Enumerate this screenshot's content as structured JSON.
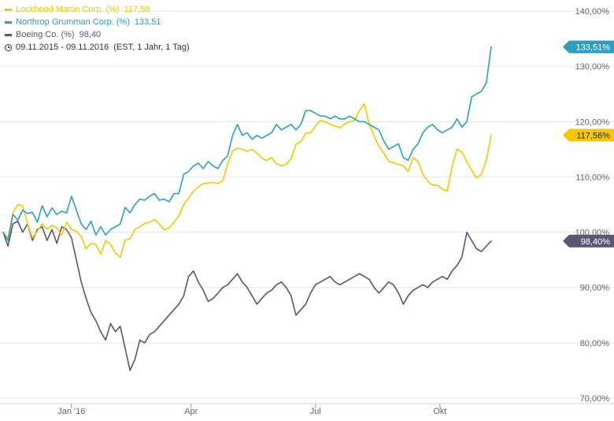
{
  "legend": [
    {
      "name": "Lockheed Martin Corp. (%)",
      "value": "117,56",
      "color": "#f5c800"
    },
    {
      "name": "Northrop Grumman Corp. (%)",
      "value": "133,51",
      "color": "#2a9fbf"
    },
    {
      "name": "Boeing Co. (%)",
      "value": "98,40",
      "color": "#5c5475"
    }
  ],
  "period": {
    "range": "09.11.2015 - 09.11.2016",
    "info": "(EST, 1 Jahr, 1 Tag)"
  },
  "chart_data": {
    "type": "line",
    "title": "",
    "xlabel": "",
    "ylabel": "",
    "ylim": [
      70,
      140
    ],
    "yticks": [
      {
        "value": 70,
        "label": "70,00%"
      },
      {
        "value": 80,
        "label": "80,00%"
      },
      {
        "value": 90,
        "label": "90,00%"
      },
      {
        "value": 100,
        "label": "100,00%"
      },
      {
        "value": 110,
        "label": "110,00%"
      },
      {
        "value": 120,
        "label": "120,00%"
      },
      {
        "value": 130,
        "label": "130,00%"
      },
      {
        "value": 140,
        "label": "140,00%"
      }
    ],
    "xlim": [
      0,
      100
    ],
    "xticks": [
      {
        "x": 14.0,
        "label": "Jan '16"
      },
      {
        "x": 38.5,
        "label": "Apr"
      },
      {
        "x": 64.0,
        "label": "Jul"
      },
      {
        "x": 89.5,
        "label": "Okt"
      }
    ],
    "series": [
      {
        "name": "Lockheed Martin Corp. (%)",
        "color": "#f5c800",
        "end_label": "117,56%",
        "x": [
          0,
          1,
          2,
          3,
          4,
          5,
          6,
          7,
          8,
          9,
          10,
          11,
          12,
          13,
          14,
          15,
          16,
          17,
          18,
          19,
          20,
          21,
          22,
          23,
          24,
          25,
          26,
          27,
          28,
          29,
          30,
          31,
          32,
          33,
          34,
          35,
          36,
          37,
          38,
          39,
          40,
          41,
          42,
          43,
          44,
          45,
          46,
          47,
          48,
          49,
          50,
          51,
          52,
          53,
          54,
          55,
          56,
          57,
          58,
          59,
          60,
          61,
          62,
          63,
          64,
          65,
          66,
          67,
          68,
          69,
          70,
          71,
          72,
          73,
          74,
          75,
          76,
          77,
          78,
          79,
          80,
          81,
          82,
          83,
          84,
          85,
          86,
          87,
          88,
          89,
          90,
          91,
          92,
          93,
          94,
          95,
          96,
          97,
          98,
          99,
          100
        ],
        "values": [
          100.0,
          99.0,
          103.5,
          105.0,
          104.8,
          101.5,
          99.0,
          100.2,
          101.5,
          100.6,
          101.2,
          100.8,
          99.5,
          101.8,
          100.5,
          100.2,
          99.2,
          97.0,
          98.0,
          97.8,
          96.0,
          98.5,
          97.8,
          96.2,
          95.5,
          98.6,
          98.8,
          100.5,
          101.0,
          101.6,
          101.8,
          102.3,
          101.5,
          100.4,
          100.8,
          101.8,
          103.0,
          105.0,
          106.2,
          107.5,
          108.2,
          108.8,
          108.9,
          109.0,
          108.8,
          109.3,
          112.4,
          114.7,
          115.2,
          115.0,
          114.6,
          115.0,
          114.3,
          113.4,
          113.0,
          113.5,
          112.4,
          112.0,
          112.3,
          113.3,
          115.9,
          116.4,
          117.9,
          118.0,
          119.2,
          120.2,
          120.0,
          119.5,
          119.2,
          118.9,
          119.6,
          120.0,
          120.2,
          122.0,
          123.2,
          119.6,
          117.4,
          115.5,
          114.3,
          112.8,
          112.6,
          112.2,
          112.0,
          111.0,
          113.5,
          112.8,
          110.5,
          109.2,
          108.5,
          108.5,
          107.8,
          107.5,
          112.0,
          115.0,
          114.5,
          112.8,
          111.2,
          109.8,
          110.5,
          113.0,
          117.56
        ]
      },
      {
        "name": "Northrop Grumman Corp. (%)",
        "color": "#2a9fbf",
        "end_label": "133,51%",
        "x": [
          0,
          1,
          2,
          3,
          4,
          5,
          6,
          7,
          8,
          9,
          10,
          11,
          12,
          13,
          14,
          15,
          16,
          17,
          18,
          19,
          20,
          21,
          22,
          23,
          24,
          25,
          26,
          27,
          28,
          29,
          30,
          31,
          32,
          33,
          34,
          35,
          36,
          37,
          38,
          39,
          40,
          41,
          42,
          43,
          44,
          45,
          46,
          47,
          48,
          49,
          50,
          51,
          52,
          53,
          54,
          55,
          56,
          57,
          58,
          59,
          60,
          61,
          62,
          63,
          64,
          65,
          66,
          67,
          68,
          69,
          70,
          71,
          72,
          73,
          74,
          75,
          76,
          77,
          78,
          79,
          80,
          81,
          82,
          83,
          84,
          85,
          86,
          87,
          88,
          89,
          90,
          91,
          92,
          93,
          94,
          95,
          96,
          97,
          98,
          99,
          100
        ],
        "values": [
          100.0,
          98.5,
          103.2,
          102.2,
          104.0,
          103.4,
          103.6,
          101.8,
          104.8,
          102.8,
          104.4,
          103.2,
          103.8,
          103.5,
          106.5,
          104.0,
          101.5,
          100.5,
          102.0,
          99.5,
          101.0,
          99.5,
          100.5,
          101.0,
          101.5,
          104.5,
          103.5,
          105.0,
          106.0,
          105.8,
          106.5,
          107.0,
          105.8,
          106.0,
          105.5,
          107.0,
          107.0,
          110.5,
          111.0,
          112.0,
          112.5,
          111.5,
          112.8,
          112.0,
          111.5,
          113.0,
          113.8,
          117.5,
          119.5,
          117.5,
          118.0,
          116.8,
          117.5,
          117.0,
          117.5,
          118.0,
          119.5,
          118.5,
          119.0,
          119.5,
          118.5,
          119.5,
          122.0,
          122.0,
          121.5,
          121.0,
          121.0,
          120.5,
          121.0,
          120.5,
          120.5,
          121.0,
          120.5,
          120.0,
          120.0,
          119.5,
          119.0,
          118.5,
          116.5,
          115.0,
          115.5,
          116.0,
          113.5,
          113.0,
          115.0,
          116.0,
          118.0,
          119.0,
          119.5,
          118.5,
          118.0,
          118.5,
          119.0,
          120.5,
          119.0,
          120.0,
          124.5,
          125.0,
          125.5,
          127.0,
          133.51
        ]
      },
      {
        "name": "Boeing Co. (%)",
        "color": "#5c5475",
        "end_label": "98,40%",
        "x": [
          0,
          1,
          2,
          3,
          4,
          5,
          6,
          7,
          8,
          9,
          10,
          11,
          12,
          13,
          14,
          15,
          16,
          17,
          18,
          19,
          20,
          21,
          22,
          23,
          24,
          25,
          26,
          27,
          28,
          29,
          30,
          31,
          32,
          33,
          34,
          35,
          36,
          37,
          38,
          39,
          40,
          41,
          42,
          43,
          44,
          45,
          46,
          47,
          48,
          49,
          50,
          51,
          52,
          53,
          54,
          55,
          56,
          57,
          58,
          59,
          60,
          61,
          62,
          63,
          64,
          65,
          66,
          67,
          68,
          69,
          70,
          71,
          72,
          73,
          74,
          75,
          76,
          77,
          78,
          79,
          80,
          81,
          82,
          83,
          84,
          85,
          86,
          87,
          88,
          89,
          90,
          91,
          92,
          93,
          94,
          95,
          96,
          97,
          98,
          99,
          100
        ],
        "values": [
          100.0,
          97.5,
          101.5,
          102.0,
          100.0,
          101.5,
          98.5,
          100.5,
          101.0,
          98.5,
          100.5,
          98.0,
          101.0,
          100.5,
          99.0,
          95.0,
          91.0,
          88.0,
          85.5,
          84.0,
          82.0,
          80.5,
          83.5,
          82.0,
          83.0,
          79.0,
          75.0,
          77.0,
          80.5,
          80.0,
          81.5,
          82.0,
          83.0,
          84.0,
          85.0,
          86.0,
          87.0,
          88.5,
          92.0,
          93.0,
          91.0,
          89.5,
          87.5,
          88.0,
          89.0,
          90.0,
          90.5,
          91.5,
          92.5,
          91.0,
          90.0,
          88.5,
          87.0,
          88.0,
          89.0,
          89.5,
          90.5,
          91.0,
          90.0,
          88.5,
          85.0,
          86.0,
          87.0,
          89.0,
          90.5,
          91.0,
          91.5,
          92.0,
          91.0,
          90.5,
          91.0,
          91.5,
          92.0,
          92.5,
          92.0,
          91.5,
          90.0,
          89.0,
          90.0,
          91.0,
          90.5,
          89.0,
          87.0,
          88.5,
          89.5,
          90.0,
          90.5,
          90.0,
          91.0,
          91.5,
          92.0,
          91.5,
          93.0,
          94.0,
          95.5,
          100.0,
          98.5,
          97.0,
          96.5,
          97.5,
          98.4
        ]
      }
    ]
  }
}
